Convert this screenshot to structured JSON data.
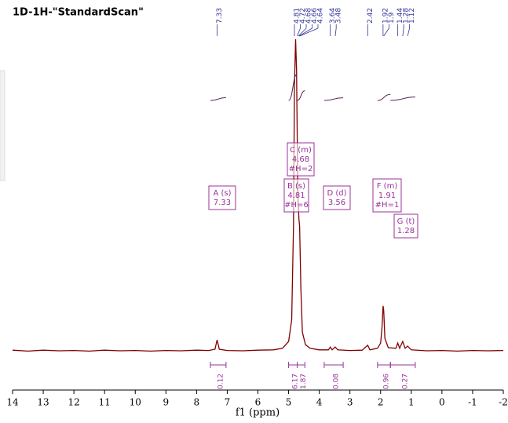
{
  "chart_data": {
    "type": "nmr",
    "title": "1D-1H-\"StandardScan\"",
    "x_label": "f1 (ppm)",
    "xlim": [
      14,
      -2
    ],
    "xticks": [
      14,
      13,
      12,
      11,
      10,
      9,
      8,
      7,
      6,
      5,
      4,
      3,
      2,
      1,
      0,
      -1,
      -2
    ],
    "ylim": [
      0,
      100
    ],
    "series": [
      {
        "color": "#800000",
        "x": [
          14.0,
          13.5,
          13.0,
          12.5,
          12.0,
          11.5,
          11.0,
          10.5,
          10.0,
          9.5,
          9.0,
          8.5,
          8.0,
          7.6,
          7.4,
          7.33,
          7.26,
          7.0,
          6.5,
          6.0,
          5.5,
          5.2,
          5.0,
          4.9,
          4.84,
          4.81,
          4.77,
          4.74,
          4.7,
          4.66,
          4.64,
          4.6,
          4.55,
          4.45,
          4.3,
          4.0,
          3.7,
          3.64,
          3.58,
          3.48,
          3.4,
          3.0,
          2.6,
          2.42,
          2.35,
          2.1,
          2.0,
          1.95,
          1.92,
          1.9,
          1.86,
          1.75,
          1.5,
          1.44,
          1.38,
          1.28,
          1.2,
          1.12,
          1.0,
          0.5,
          0.0,
          -0.5,
          -1.0,
          -1.5,
          -2.0
        ],
        "values": [
          0.2,
          -0.1,
          0.2,
          0,
          0.1,
          -0.1,
          0.2,
          0,
          0.1,
          -0.1,
          0.1,
          0,
          0.2,
          0.1,
          0.5,
          3.5,
          0.5,
          0.1,
          0,
          0.2,
          0.3,
          0.8,
          3,
          10,
          40,
          85,
          100,
          90,
          50,
          42,
          40,
          20,
          6,
          2,
          0.8,
          0.3,
          0.3,
          1.2,
          0.3,
          1.2,
          0.3,
          0.1,
          0.2,
          1.8,
          0.3,
          0.8,
          2.5,
          8,
          14.4,
          13,
          4,
          1,
          0.8,
          2.5,
          0.8,
          3,
          0.8,
          1.5,
          0.3,
          0,
          0.1,
          -0.1,
          0.1,
          0,
          0.1
        ]
      }
    ],
    "peaks": [
      7.33,
      4.81,
      4.72,
      4.68,
      4.66,
      4.64,
      3.64,
      3.48,
      2.42,
      1.92,
      1.9,
      1.44,
      1.28,
      1.12
    ],
    "multiplets": [
      {
        "label": "A (s)",
        "shift": 7.33
      },
      {
        "label": "B (s)",
        "shift": 4.81,
        "h": "#H=6"
      },
      {
        "label": "C (m)",
        "shift": 4.68,
        "h": "#H=2"
      },
      {
        "label": "D (d)",
        "shift": 3.56
      },
      {
        "label": "F (m)",
        "shift": 1.91,
        "h": "#H=1"
      },
      {
        "label": "G (t)",
        "shift": 1.28
      }
    ],
    "integrals": [
      {
        "range": [
          7.55,
          7.04
        ],
        "value": 0.12
      },
      {
        "range": [
          5.0,
          4.72
        ],
        "value": 6.17
      },
      {
        "range": [
          4.72,
          4.47
        ],
        "value": 1.87
      },
      {
        "range": [
          3.84,
          3.22
        ],
        "value": 0.08
      },
      {
        "range": [
          2.1,
          1.68
        ],
        "value": 0.96
      },
      {
        "range": [
          1.68,
          0.87
        ],
        "value": 0.27
      }
    ]
  }
}
